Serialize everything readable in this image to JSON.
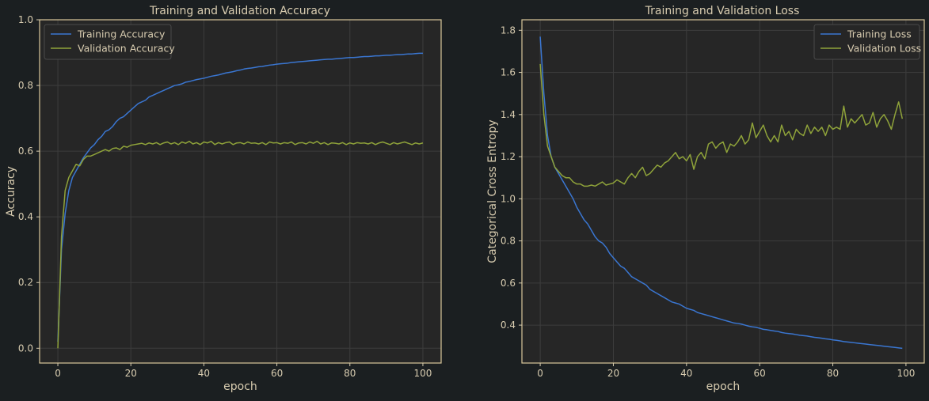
{
  "colors": {
    "training": "#3a76d1",
    "validation": "#8fa33a",
    "text": "#d8ccb0",
    "background": "#1b1f21",
    "plot_bg": "#262626",
    "frame": "#d9c89a"
  },
  "chart_data": [
    {
      "type": "line",
      "title": "Training and Validation Accuracy",
      "xlabel": "epoch",
      "ylabel": "Accuracy",
      "xlim": [
        -5,
        105
      ],
      "ylim": [
        -0.045,
        1.0
      ],
      "xticks": [
        0,
        20,
        40,
        60,
        80,
        100
      ],
      "xtick_labels": [
        "0",
        "20",
        "40",
        "60",
        "80",
        "100"
      ],
      "yticks": [
        0.0,
        0.2,
        0.4,
        0.6,
        0.8,
        1.0
      ],
      "ytick_labels": [
        "0.0",
        "0.2",
        "0.4",
        "0.6",
        "0.8",
        "1.0"
      ],
      "grid": true,
      "legend_position": "top-left",
      "series": [
        {
          "name": "Training Accuracy",
          "color": "#3a76d1",
          "x": [
            0,
            1,
            2,
            3,
            4,
            5,
            6,
            7,
            8,
            9,
            10,
            11,
            12,
            13,
            14,
            15,
            16,
            17,
            18,
            19,
            20,
            21,
            22,
            23,
            24,
            25,
            26,
            27,
            28,
            29,
            30,
            31,
            32,
            33,
            34,
            35,
            36,
            37,
            38,
            39,
            40,
            41,
            42,
            43,
            44,
            45,
            46,
            47,
            48,
            49,
            50,
            51,
            52,
            53,
            54,
            55,
            56,
            57,
            58,
            59,
            60,
            61,
            62,
            63,
            64,
            65,
            66,
            67,
            68,
            69,
            70,
            71,
            72,
            73,
            74,
            75,
            76,
            77,
            78,
            79,
            80,
            81,
            82,
            83,
            84,
            85,
            86,
            87,
            88,
            89,
            90,
            91,
            92,
            93,
            94,
            95,
            96,
            97,
            98,
            99,
            100
          ],
          "values": [
            0.02,
            0.3,
            0.41,
            0.48,
            0.52,
            0.54,
            0.56,
            0.58,
            0.595,
            0.61,
            0.62,
            0.635,
            0.645,
            0.66,
            0.665,
            0.675,
            0.69,
            0.7,
            0.705,
            0.715,
            0.725,
            0.735,
            0.745,
            0.75,
            0.755,
            0.765,
            0.77,
            0.775,
            0.78,
            0.785,
            0.79,
            0.795,
            0.8,
            0.802,
            0.805,
            0.81,
            0.812,
            0.815,
            0.818,
            0.82,
            0.822,
            0.825,
            0.828,
            0.83,
            0.832,
            0.835,
            0.838,
            0.84,
            0.842,
            0.845,
            0.847,
            0.85,
            0.852,
            0.853,
            0.855,
            0.857,
            0.858,
            0.86,
            0.862,
            0.863,
            0.865,
            0.866,
            0.867,
            0.868,
            0.87,
            0.871,
            0.872,
            0.873,
            0.874,
            0.875,
            0.876,
            0.877,
            0.878,
            0.879,
            0.88,
            0.88,
            0.881,
            0.882,
            0.883,
            0.884,
            0.885,
            0.885,
            0.886,
            0.887,
            0.888,
            0.888,
            0.889,
            0.89,
            0.89,
            0.891,
            0.892,
            0.892,
            0.893,
            0.894,
            0.894,
            0.895,
            0.896,
            0.896,
            0.897,
            0.898,
            0.898
          ]
        },
        {
          "name": "Validation Accuracy",
          "color": "#8fa33a",
          "x": [
            0,
            1,
            2,
            3,
            4,
            5,
            6,
            7,
            8,
            9,
            10,
            11,
            12,
            13,
            14,
            15,
            16,
            17,
            18,
            19,
            20,
            21,
            22,
            23,
            24,
            25,
            26,
            27,
            28,
            29,
            30,
            31,
            32,
            33,
            34,
            35,
            36,
            37,
            38,
            39,
            40,
            41,
            42,
            43,
            44,
            45,
            46,
            47,
            48,
            49,
            50,
            51,
            52,
            53,
            54,
            55,
            56,
            57,
            58,
            59,
            60,
            61,
            62,
            63,
            64,
            65,
            66,
            67,
            68,
            69,
            70,
            71,
            72,
            73,
            74,
            75,
            76,
            77,
            78,
            79,
            80,
            81,
            82,
            83,
            84,
            85,
            86,
            87,
            88,
            89,
            90,
            91,
            92,
            93,
            94,
            95,
            96,
            97,
            98,
            99,
            100
          ],
          "values": [
            0.0,
            0.34,
            0.48,
            0.52,
            0.54,
            0.56,
            0.555,
            0.575,
            0.585,
            0.585,
            0.59,
            0.595,
            0.6,
            0.605,
            0.6,
            0.608,
            0.61,
            0.605,
            0.615,
            0.612,
            0.618,
            0.62,
            0.622,
            0.624,
            0.62,
            0.625,
            0.622,
            0.626,
            0.62,
            0.625,
            0.628,
            0.622,
            0.626,
            0.62,
            0.628,
            0.624,
            0.63,
            0.622,
            0.626,
            0.62,
            0.628,
            0.625,
            0.63,
            0.62,
            0.626,
            0.622,
            0.626,
            0.628,
            0.62,
            0.625,
            0.626,
            0.622,
            0.628,
            0.624,
            0.625,
            0.622,
            0.626,
            0.62,
            0.628,
            0.625,
            0.626,
            0.622,
            0.626,
            0.624,
            0.628,
            0.62,
            0.625,
            0.626,
            0.622,
            0.628,
            0.624,
            0.63,
            0.622,
            0.626,
            0.62,
            0.625,
            0.624,
            0.622,
            0.626,
            0.62,
            0.625,
            0.622,
            0.626,
            0.624,
            0.625,
            0.622,
            0.626,
            0.62,
            0.625,
            0.628,
            0.624,
            0.62,
            0.626,
            0.622,
            0.625,
            0.628,
            0.624,
            0.62,
            0.625,
            0.622,
            0.625
          ]
        }
      ]
    },
    {
      "type": "line",
      "title": "Training and Validation Loss",
      "xlabel": "epoch",
      "ylabel": "Categorical Cross Entropy",
      "xlim": [
        -5,
        105
      ],
      "ylim": [
        0.22,
        1.85
      ],
      "xticks": [
        0,
        20,
        40,
        60,
        80,
        100
      ],
      "xtick_labels": [
        "0",
        "20",
        "40",
        "60",
        "80",
        "100"
      ],
      "yticks": [
        0.4,
        0.6,
        0.8,
        1.0,
        1.2,
        1.4,
        1.6,
        1.8
      ],
      "ytick_labels": [
        "0.4",
        "0.6",
        "0.8",
        "1.0",
        "1.2",
        "1.4",
        "1.6",
        "1.8"
      ],
      "grid": true,
      "legend_position": "top-right",
      "series": [
        {
          "name": "Training Loss",
          "color": "#3a76d1",
          "x": [
            0,
            1,
            2,
            3,
            4,
            5,
            6,
            7,
            8,
            9,
            10,
            11,
            12,
            13,
            14,
            15,
            16,
            17,
            18,
            19,
            20,
            21,
            22,
            23,
            24,
            25,
            26,
            27,
            28,
            29,
            30,
            31,
            32,
            33,
            34,
            35,
            36,
            37,
            38,
            39,
            40,
            41,
            42,
            43,
            44,
            45,
            46,
            47,
            48,
            49,
            50,
            51,
            52,
            53,
            54,
            55,
            56,
            57,
            58,
            59,
            60,
            61,
            62,
            63,
            64,
            65,
            66,
            67,
            68,
            69,
            70,
            71,
            72,
            73,
            74,
            75,
            76,
            77,
            78,
            79,
            80,
            81,
            82,
            83,
            84,
            85,
            86,
            87,
            88,
            89,
            90,
            91,
            92,
            93,
            94,
            95,
            96,
            97,
            98,
            99
          ],
          "values": [
            1.77,
            1.5,
            1.3,
            1.2,
            1.15,
            1.12,
            1.09,
            1.06,
            1.03,
            1.0,
            0.96,
            0.93,
            0.9,
            0.88,
            0.85,
            0.82,
            0.8,
            0.79,
            0.77,
            0.74,
            0.72,
            0.7,
            0.68,
            0.67,
            0.65,
            0.63,
            0.62,
            0.61,
            0.6,
            0.59,
            0.57,
            0.56,
            0.55,
            0.54,
            0.53,
            0.52,
            0.51,
            0.505,
            0.5,
            0.49,
            0.48,
            0.475,
            0.47,
            0.46,
            0.455,
            0.45,
            0.445,
            0.44,
            0.435,
            0.43,
            0.425,
            0.42,
            0.415,
            0.41,
            0.408,
            0.405,
            0.4,
            0.395,
            0.392,
            0.39,
            0.385,
            0.38,
            0.378,
            0.375,
            0.372,
            0.37,
            0.365,
            0.362,
            0.36,
            0.358,
            0.355,
            0.352,
            0.35,
            0.348,
            0.345,
            0.342,
            0.34,
            0.338,
            0.335,
            0.333,
            0.33,
            0.328,
            0.325,
            0.322,
            0.32,
            0.318,
            0.316,
            0.314,
            0.312,
            0.31,
            0.308,
            0.306,
            0.304,
            0.302,
            0.3,
            0.298,
            0.296,
            0.294,
            0.292,
            0.29
          ]
        },
        {
          "name": "Validation Loss",
          "color": "#8fa33a",
          "x": [
            0,
            1,
            2,
            3,
            4,
            5,
            6,
            7,
            8,
            9,
            10,
            11,
            12,
            13,
            14,
            15,
            16,
            17,
            18,
            19,
            20,
            21,
            22,
            23,
            24,
            25,
            26,
            27,
            28,
            29,
            30,
            31,
            32,
            33,
            34,
            35,
            36,
            37,
            38,
            39,
            40,
            41,
            42,
            43,
            44,
            45,
            46,
            47,
            48,
            49,
            50,
            51,
            52,
            53,
            54,
            55,
            56,
            57,
            58,
            59,
            60,
            61,
            62,
            63,
            64,
            65,
            66,
            67,
            68,
            69,
            70,
            71,
            72,
            73,
            74,
            75,
            76,
            77,
            78,
            79,
            80,
            81,
            82,
            83,
            84,
            85,
            86,
            87,
            88,
            89,
            90,
            91,
            92,
            93,
            94,
            95,
            96,
            97,
            98,
            99
          ],
          "values": [
            1.64,
            1.4,
            1.25,
            1.2,
            1.15,
            1.13,
            1.11,
            1.1,
            1.1,
            1.08,
            1.07,
            1.07,
            1.06,
            1.06,
            1.065,
            1.06,
            1.07,
            1.08,
            1.065,
            1.07,
            1.075,
            1.09,
            1.08,
            1.07,
            1.1,
            1.12,
            1.1,
            1.13,
            1.15,
            1.11,
            1.12,
            1.14,
            1.16,
            1.15,
            1.17,
            1.18,
            1.2,
            1.22,
            1.19,
            1.2,
            1.18,
            1.21,
            1.14,
            1.2,
            1.22,
            1.19,
            1.26,
            1.27,
            1.24,
            1.26,
            1.27,
            1.22,
            1.26,
            1.25,
            1.27,
            1.3,
            1.26,
            1.28,
            1.36,
            1.29,
            1.32,
            1.35,
            1.3,
            1.27,
            1.3,
            1.27,
            1.35,
            1.3,
            1.32,
            1.28,
            1.33,
            1.31,
            1.3,
            1.35,
            1.31,
            1.34,
            1.32,
            1.34,
            1.3,
            1.35,
            1.33,
            1.34,
            1.33,
            1.44,
            1.34,
            1.38,
            1.36,
            1.38,
            1.4,
            1.35,
            1.36,
            1.41,
            1.34,
            1.38,
            1.4,
            1.37,
            1.33,
            1.4,
            1.46,
            1.38
          ]
        }
      ]
    }
  ]
}
